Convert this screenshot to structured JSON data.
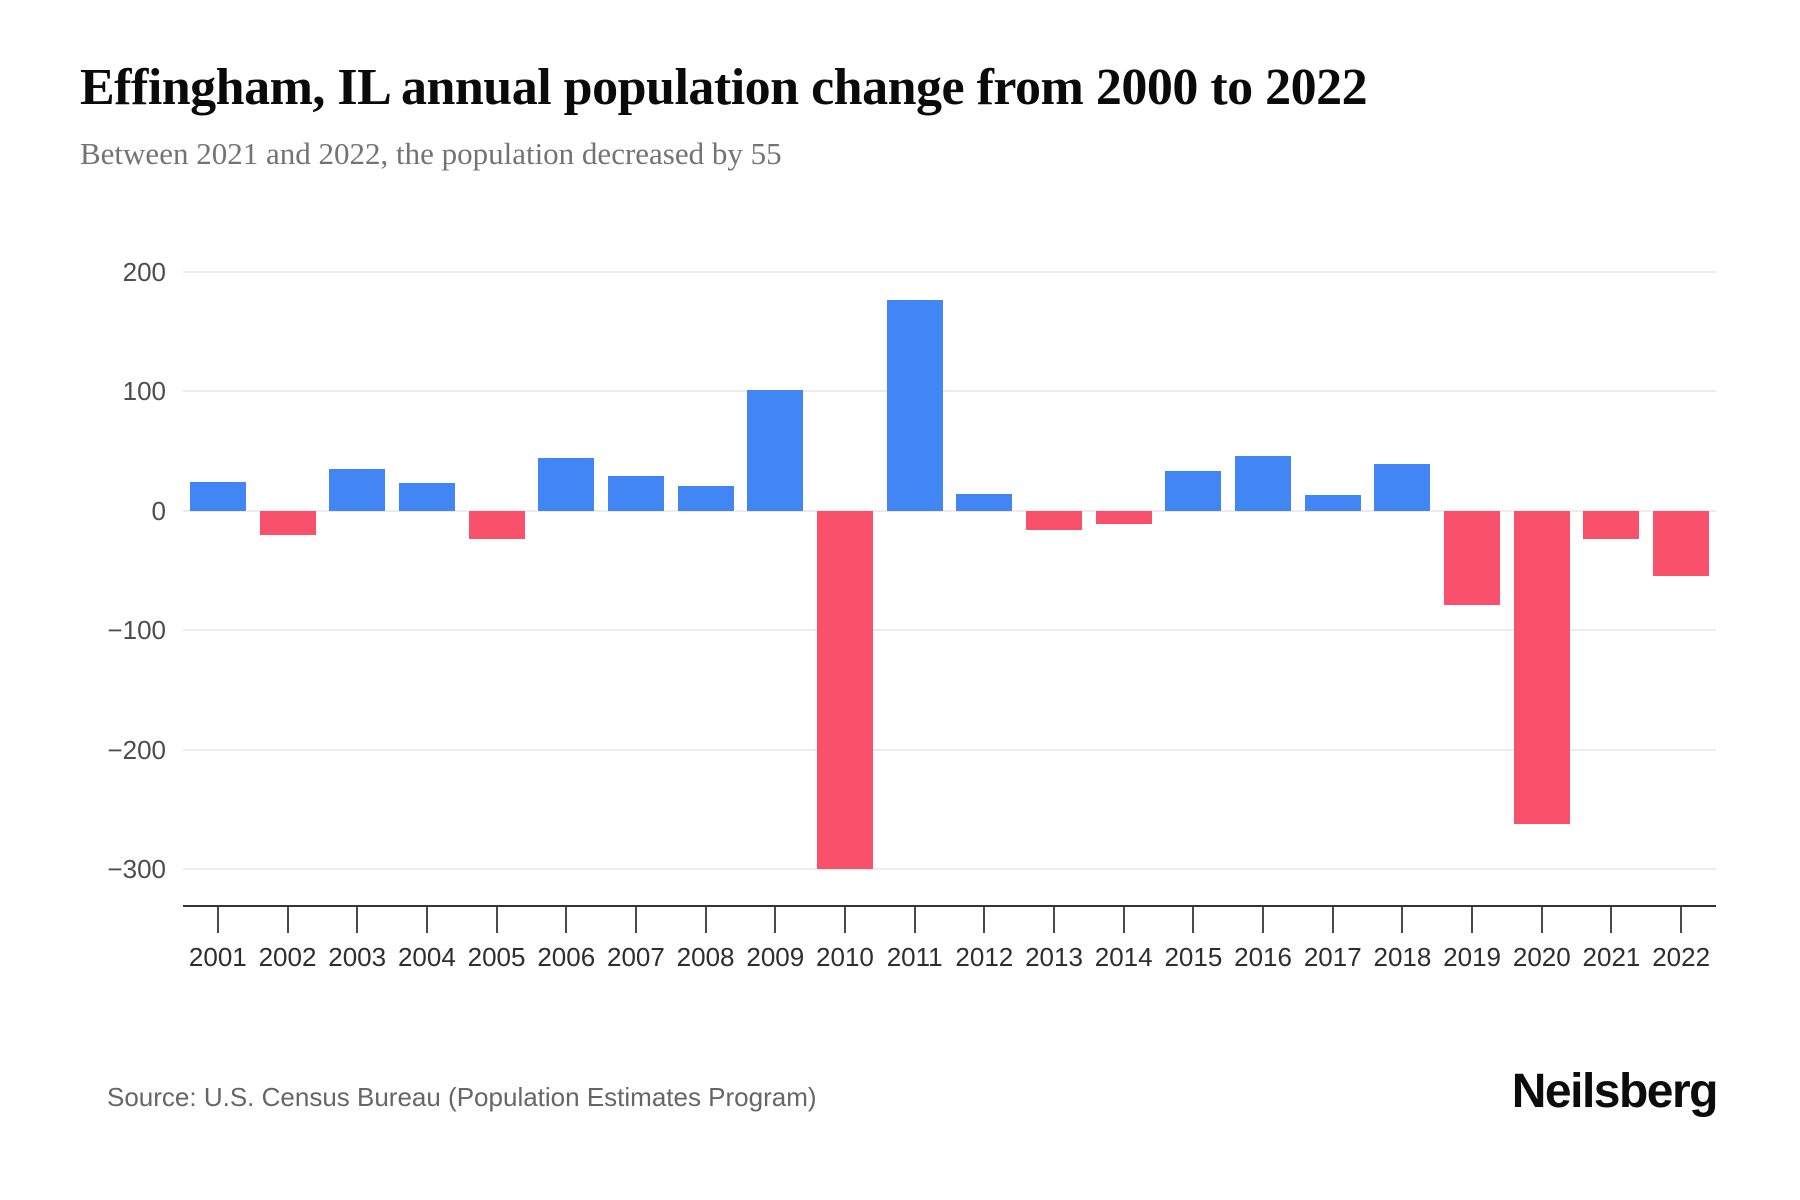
{
  "header": {
    "title": "Effingham, IL annual population change from 2000 to 2022",
    "subtitle": "Between 2021 and 2022, the population decreased by 55"
  },
  "chart_data": {
    "type": "bar",
    "title": "Effingham, IL annual population change from 2000 to 2022",
    "subtitle": "Between 2021 and 2022, the population decreased by 55",
    "categories": [
      "2001",
      "2002",
      "2003",
      "2004",
      "2005",
      "2006",
      "2007",
      "2008",
      "2009",
      "2010",
      "2011",
      "2012",
      "2013",
      "2014",
      "2015",
      "2016",
      "2017",
      "2018",
      "2019",
      "2020",
      "2021",
      "2022"
    ],
    "values": [
      24,
      -20,
      35,
      23,
      -24,
      44,
      29,
      21,
      101,
      -300,
      176,
      14,
      -16,
      -11,
      33,
      46,
      13,
      39,
      -79,
      -262,
      -24,
      -55
    ],
    "xlabel": "",
    "ylabel": "",
    "ylim": [
      -330,
      235
    ],
    "yticks": [
      200,
      100,
      0,
      -100,
      -200,
      -300
    ],
    "grid": "horizontal",
    "legend": "none",
    "colors": {
      "positive": "#4285F4",
      "negative": "#F9506B"
    }
  },
  "footer": {
    "source": "Source: U.S. Census Bureau (Population Estimates Program)",
    "brand": "Neilsberg"
  }
}
